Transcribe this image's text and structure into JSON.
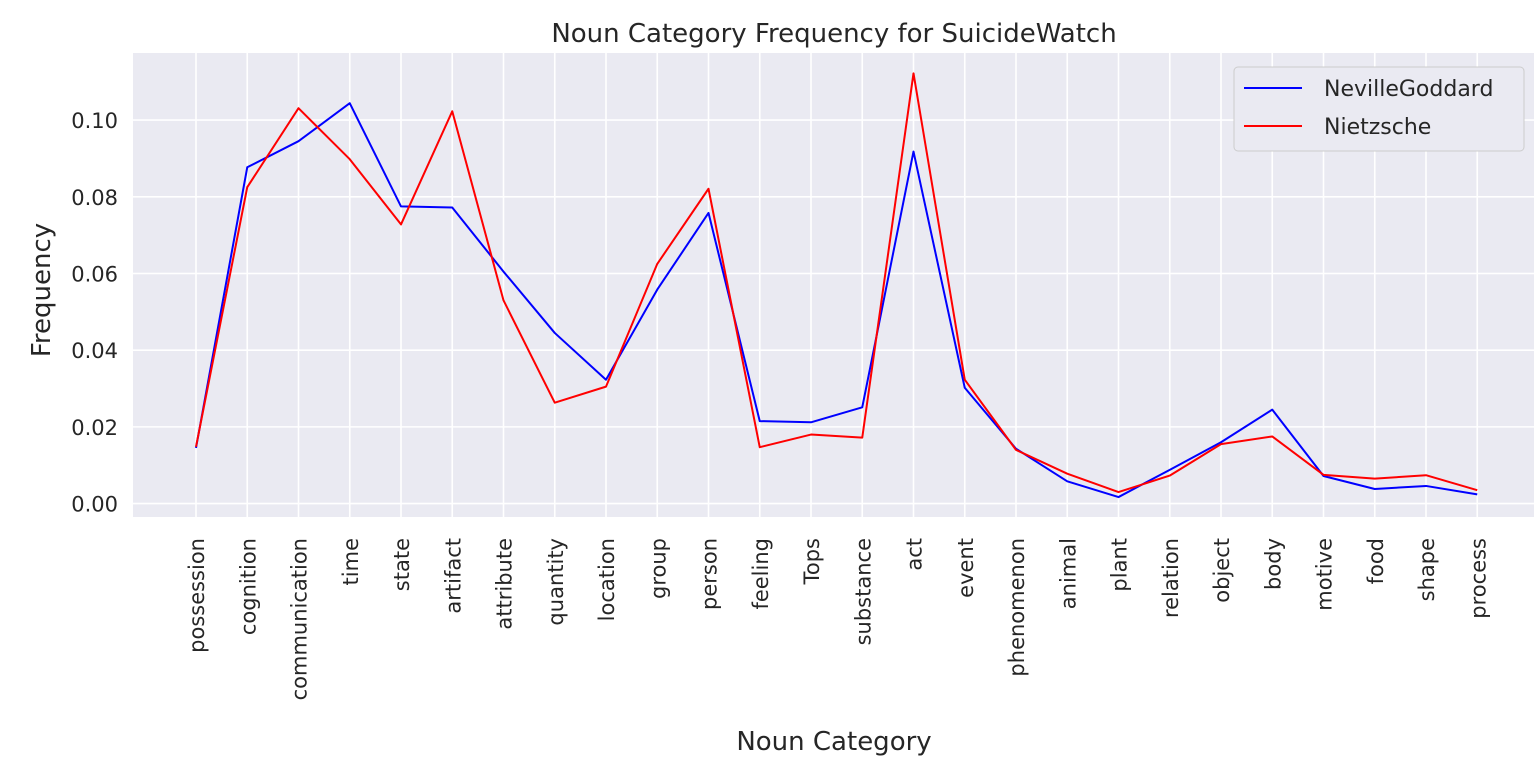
{
  "chart_data": {
    "type": "line",
    "title": "Noun Category Frequency for SuicideWatch",
    "xlabel": "Noun Category",
    "ylabel": "Frequency",
    "categories": [
      "possession",
      "cognition",
      "communication",
      "time",
      "state",
      "artifact",
      "attribute",
      "quantity",
      "location",
      "group",
      "person",
      "feeling",
      "Tops",
      "substance",
      "act",
      "event",
      "phenomenon",
      "animal",
      "plant",
      "relation",
      "object",
      "body",
      "motive",
      "food",
      "shape",
      "process"
    ],
    "ylim": [
      -0.0035,
      0.1175
    ],
    "yticks": [
      0.0,
      0.02,
      0.04,
      0.06,
      0.08,
      0.1
    ],
    "ytick_labels": [
      "0.00",
      "0.02",
      "0.04",
      "0.06",
      "0.08",
      "0.10"
    ],
    "grid": true,
    "legend_position": "top-right",
    "series": [
      {
        "name": "NevilleGoddard",
        "color": "#0000ff",
        "values": [
          0.0145,
          0.0877,
          0.0945,
          0.1044,
          0.0775,
          0.0772,
          0.0605,
          0.0445,
          0.0323,
          0.0558,
          0.0758,
          0.0215,
          0.0212,
          0.0251,
          0.0918,
          0.0302,
          0.0143,
          0.0058,
          0.0017,
          0.0088,
          0.016,
          0.0245,
          0.0072,
          0.0038,
          0.0046,
          0.0024
        ]
      },
      {
        "name": "Nietzsche",
        "color": "#ff0000",
        "values": [
          0.0148,
          0.0825,
          0.1031,
          0.0898,
          0.0728,
          0.1023,
          0.053,
          0.0263,
          0.0305,
          0.0625,
          0.0821,
          0.0147,
          0.018,
          0.0172,
          0.1122,
          0.0323,
          0.014,
          0.0078,
          0.003,
          0.0073,
          0.0155,
          0.0175,
          0.0075,
          0.0065,
          0.0074,
          0.0035
        ]
      }
    ]
  }
}
